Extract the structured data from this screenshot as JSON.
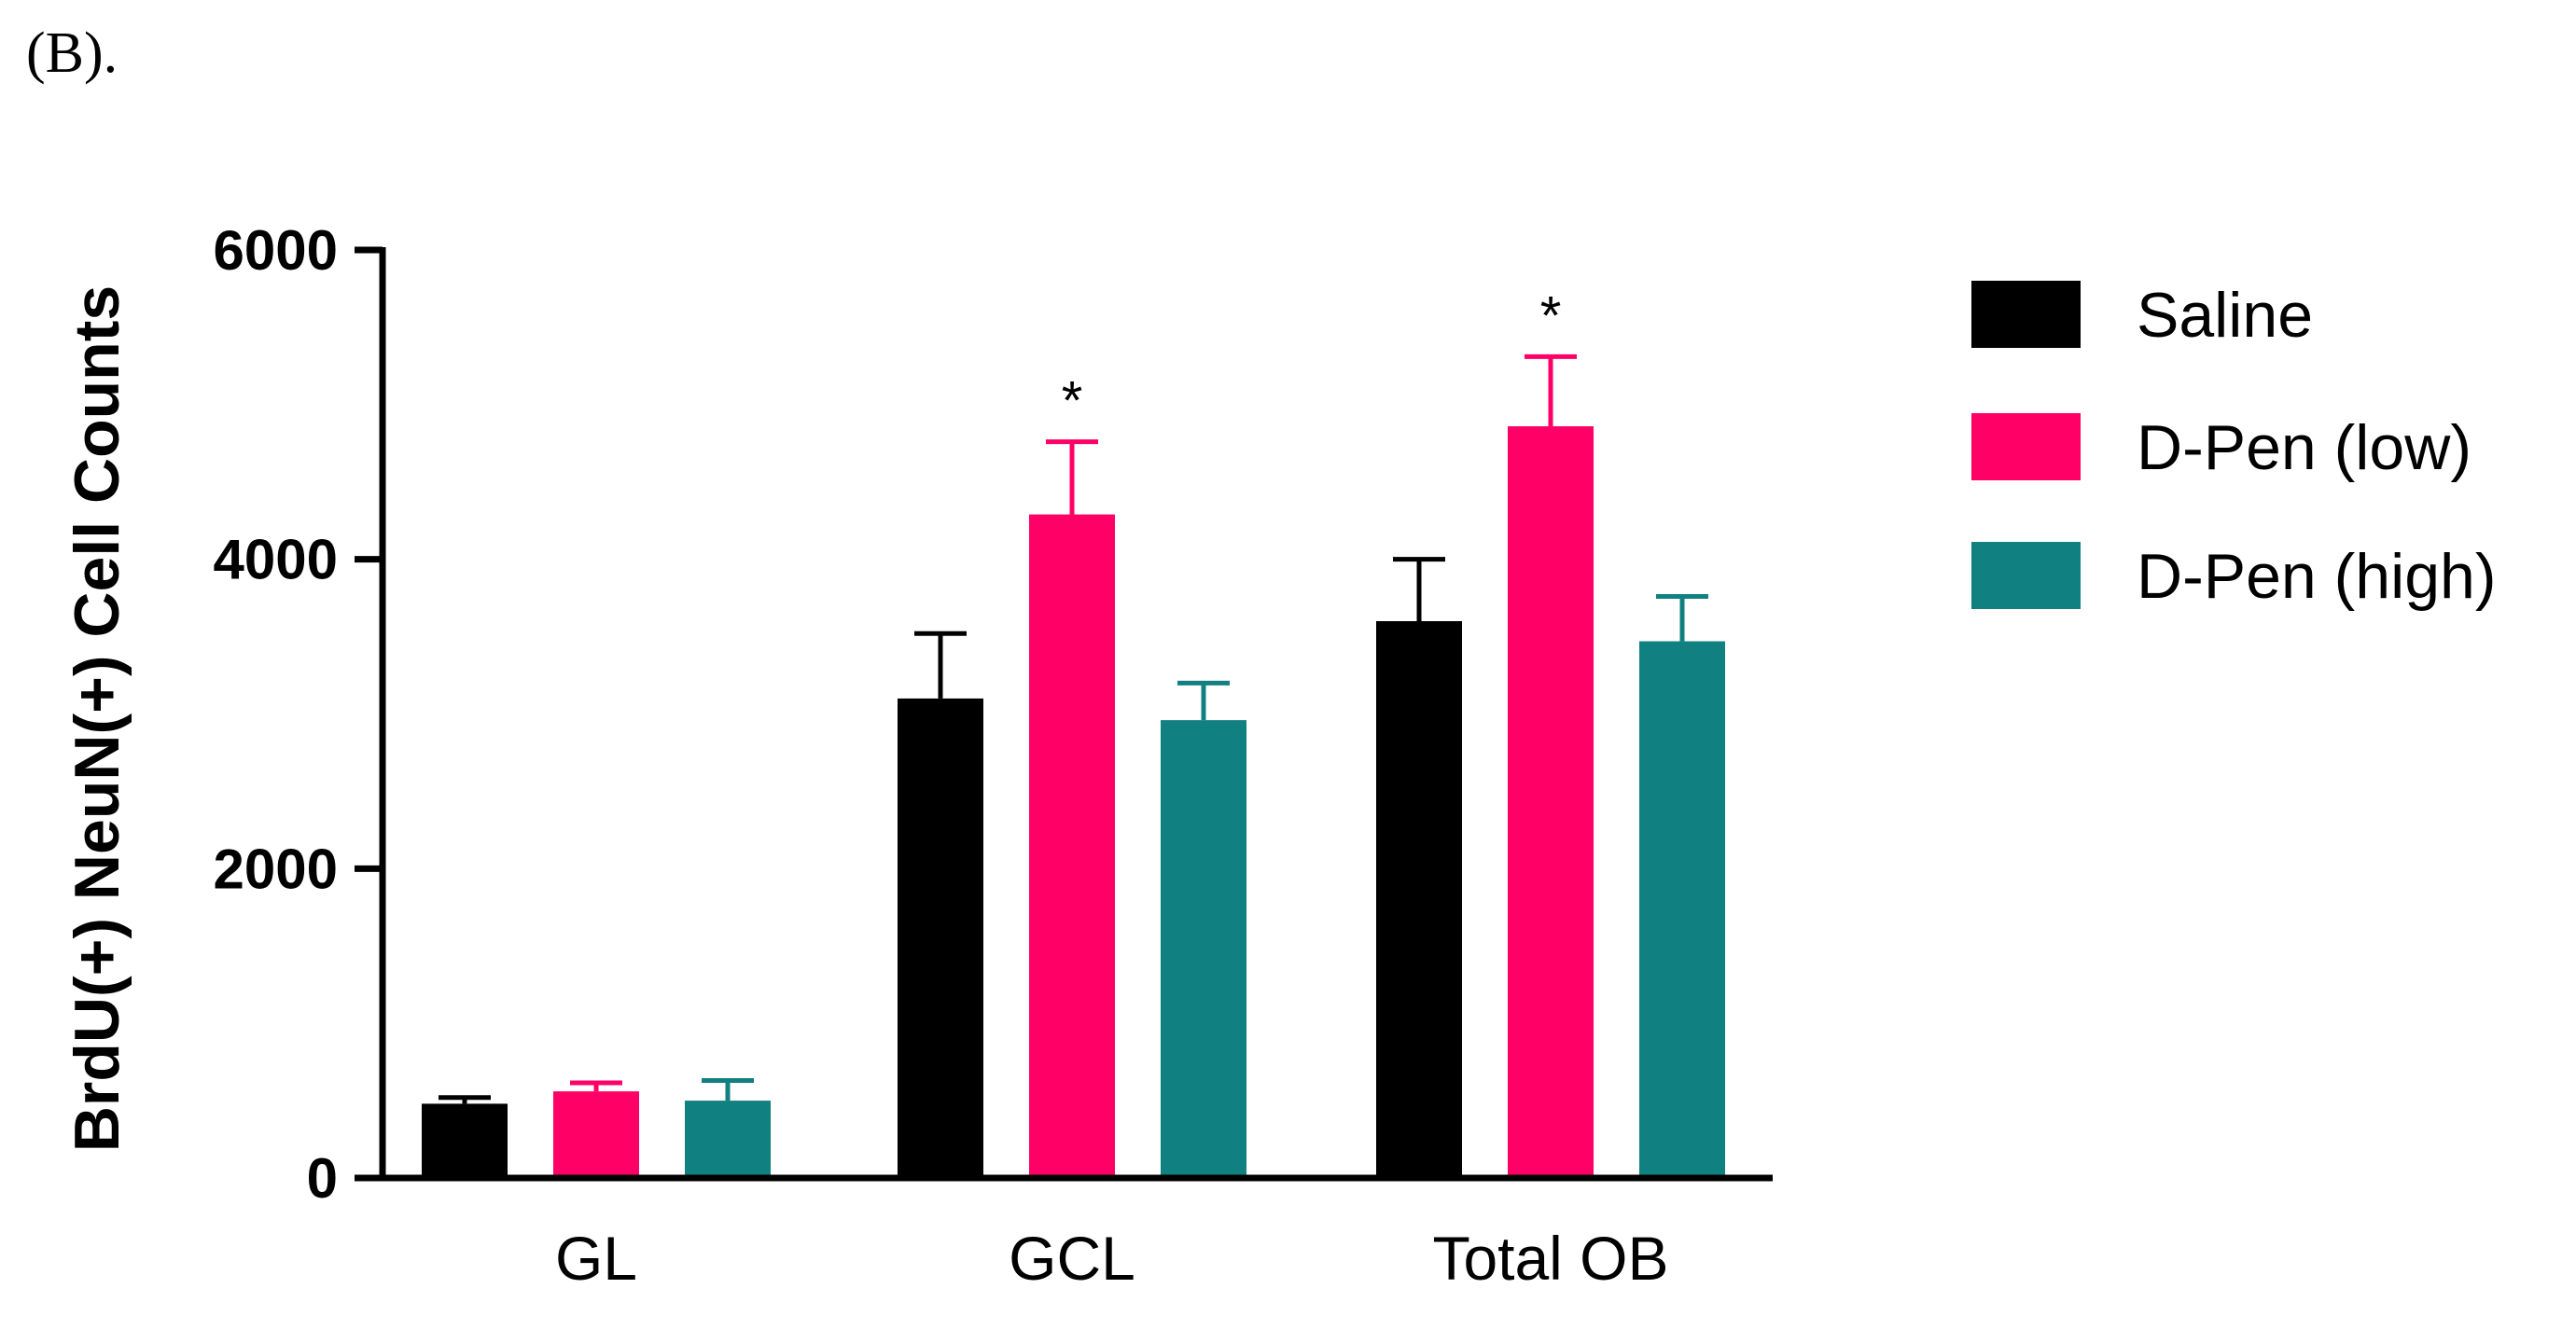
{
  "panel_label": "(B).",
  "chart_data": {
    "type": "bar",
    "title": "",
    "xlabel": "",
    "ylabel": "BrdU(+) NeuN(+) Cell Counts",
    "ylim": [
      0,
      6000
    ],
    "yticks": [
      0,
      2000,
      4000,
      6000
    ],
    "categories": [
      "GL",
      "GCL",
      "Total OB"
    ],
    "series": [
      {
        "name": "Saline",
        "color": "#000000",
        "values": [
          480,
          3100,
          3600
        ],
        "errors": [
          40,
          420,
          400
        ]
      },
      {
        "name": "D-Pen (low)",
        "color": "#ff0066",
        "values": [
          560,
          4290,
          4860
        ],
        "errors": [
          55,
          470,
          450
        ]
      },
      {
        "name": "D-Pen (high)",
        "color": "#118080",
        "values": [
          500,
          2960,
          3470
        ],
        "errors": [
          130,
          240,
          290
        ]
      }
    ],
    "annotations": [
      {
        "category": "GCL",
        "series": "D-Pen (low)",
        "text": "*"
      },
      {
        "category": "Total OB",
        "series": "D-Pen (low)",
        "text": "*"
      }
    ],
    "legend_position": "right"
  }
}
